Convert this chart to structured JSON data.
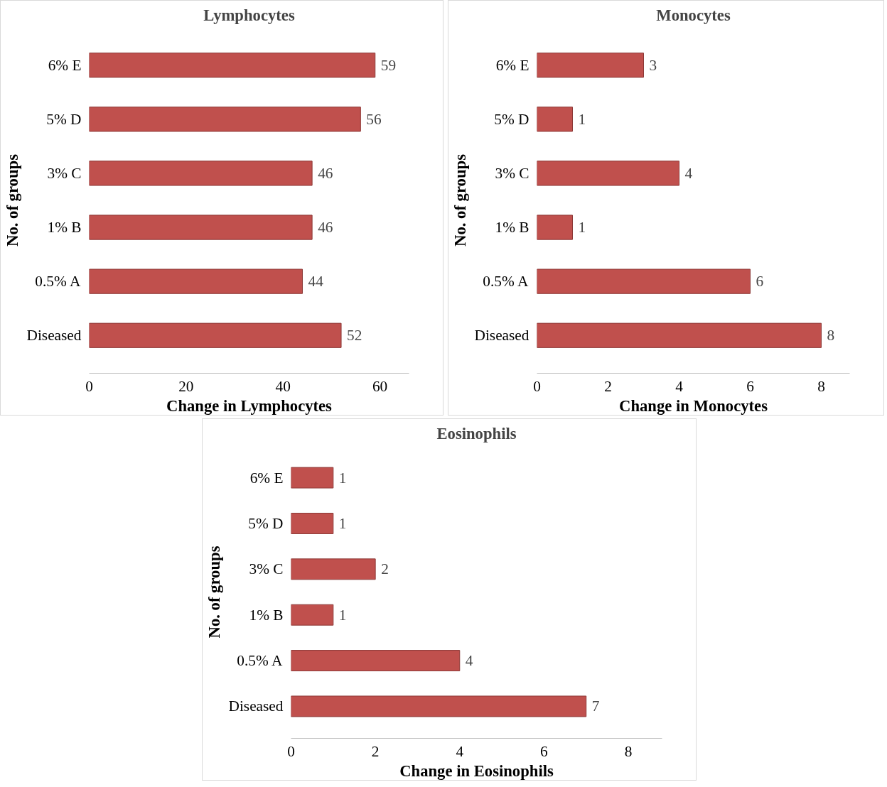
{
  "chart_data": [
    {
      "type": "bar",
      "orientation": "horizontal",
      "title": "Lymphocytes",
      "xlabel": "Change in Lymphocytes",
      "ylabel": "No. of groups",
      "categories": [
        "6% E",
        "5% D",
        "3% C",
        "1% B",
        "0.5% A",
        "Diseased"
      ],
      "values": [
        59,
        56,
        46,
        46,
        44,
        52
      ],
      "color": "#c0504d",
      "xlim": [
        0,
        66
      ],
      "xticks": [
        0,
        20,
        40,
        60
      ],
      "data_labels": true,
      "grid": false
    },
    {
      "type": "bar",
      "orientation": "horizontal",
      "title": "Monocytes",
      "xlabel": "Change in Monocytes",
      "ylabel": "No. of groups",
      "categories": [
        "6% E",
        "5% D",
        "3% C",
        "1% B",
        "0.5% A",
        "Diseased"
      ],
      "values": [
        3,
        1,
        4,
        1,
        6,
        8
      ],
      "color": "#c0504d",
      "xlim": [
        0,
        8.8
      ],
      "xticks": [
        0,
        2,
        4,
        6,
        8
      ],
      "data_labels": true,
      "grid": false
    },
    {
      "type": "bar",
      "orientation": "horizontal",
      "title": "Eosinophils",
      "xlabel": "Change in Eosinophils",
      "ylabel": "No. of groups",
      "categories": [
        "6% E",
        "5% D",
        "3% C",
        "1% B",
        "0.5% A",
        "Diseased"
      ],
      "values": [
        1,
        1,
        2,
        1,
        4,
        7
      ],
      "color": "#c0504d",
      "xlim": [
        0,
        8.8
      ],
      "xticks": [
        0,
        2,
        4,
        6,
        8
      ],
      "data_labels": true,
      "grid": false
    }
  ]
}
